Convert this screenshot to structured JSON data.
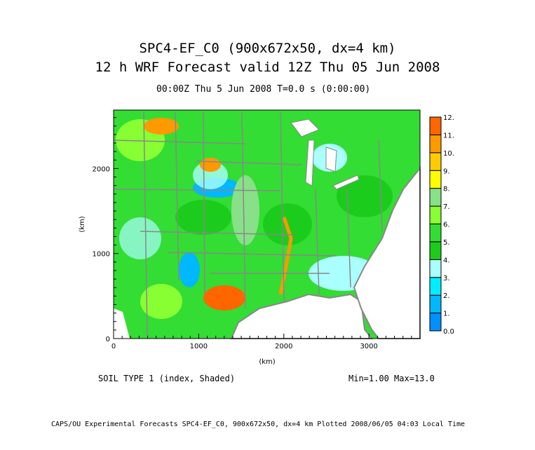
{
  "title_line1": "SPC4-EF_C0 (900x672x50, dx=4 km)",
  "title_line2": "12 h WRF Forecast valid 12Z Thu 05 Jun 2008",
  "subtitle": "00:00Z Thu  5 Jun 2008    T=0.0 s (0:00:00)",
  "field_label": "SOIL TYPE 1 (index, Shaded)",
  "min_max": "Min=1.00 Max=13.0",
  "footer": "CAPS/OU Experimental Forecasts  SPC4-EF_C0, 900x672x50, dx=4 km  Plotted 2008/06/05 04:03 Local Time",
  "chart_data": {
    "type": "heatmap",
    "title": "SPC4-EF_C0 (900x672x50, dx=4 km)",
    "xlabel": "(km)",
    "ylabel": "(km)",
    "xlim": [
      0,
      3600
    ],
    "ylim": [
      0,
      2688
    ],
    "x_ticks": [
      0,
      1000,
      2000,
      3000
    ],
    "x_tick_labels": [
      "0",
      "1000",
      "2000",
      "3000"
    ],
    "y_ticks": [
      0,
      1000,
      2000
    ],
    "y_tick_labels": [
      "0",
      "1000",
      "2000"
    ],
    "colorbar": {
      "levels": [
        0,
        1,
        2,
        3,
        4,
        5,
        6,
        7,
        8,
        9,
        10,
        11,
        12
      ],
      "labels": [
        "0.0",
        "1.",
        "2.",
        "3.",
        "4.",
        "5.",
        "6.",
        "7.",
        "8.",
        "9.",
        "10.",
        "11.",
        "12."
      ],
      "colors": [
        "#0090ff",
        "#00b8ff",
        "#00eeff",
        "#aaffff",
        "#1ccc1c",
        "#33dd33",
        "#88ff33",
        "#88e088",
        "#ffff00",
        "#ffcc00",
        "#ff9900",
        "#ff6600"
      ]
    },
    "min": 1.0,
    "max": 13.0
  }
}
